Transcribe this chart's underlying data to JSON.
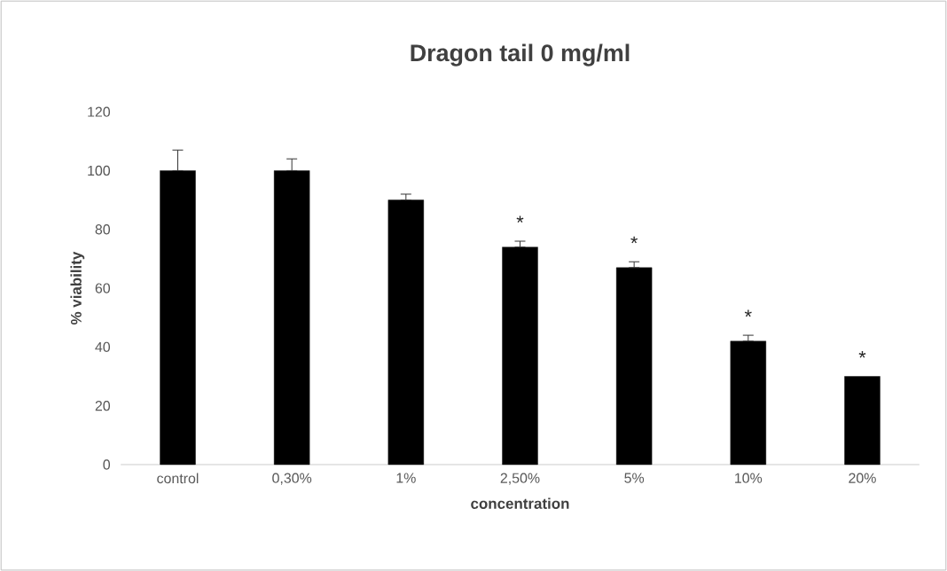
{
  "chart_data": {
    "type": "bar",
    "title": "Dragon tail 0 mg/ml",
    "xlabel": "concentration",
    "ylabel": "% viability",
    "categories": [
      "control",
      "0,30%",
      "1%",
      "2,50%",
      "5%",
      "10%",
      "20%"
    ],
    "values": [
      100,
      100,
      90,
      74,
      67,
      42,
      30
    ],
    "errors": [
      [
        100,
        107
      ],
      [
        100,
        104
      ],
      [
        90,
        92
      ],
      [
        74,
        76
      ],
      [
        67,
        69
      ],
      [
        42,
        44
      ],
      null
    ],
    "color": "#000000",
    "ylim": [
      0,
      120
    ],
    "yticks": [
      0,
      20,
      40,
      60,
      80,
      100,
      120
    ],
    "grid": false,
    "annotations": [
      "*",
      "*",
      "*",
      "*"
    ]
  }
}
